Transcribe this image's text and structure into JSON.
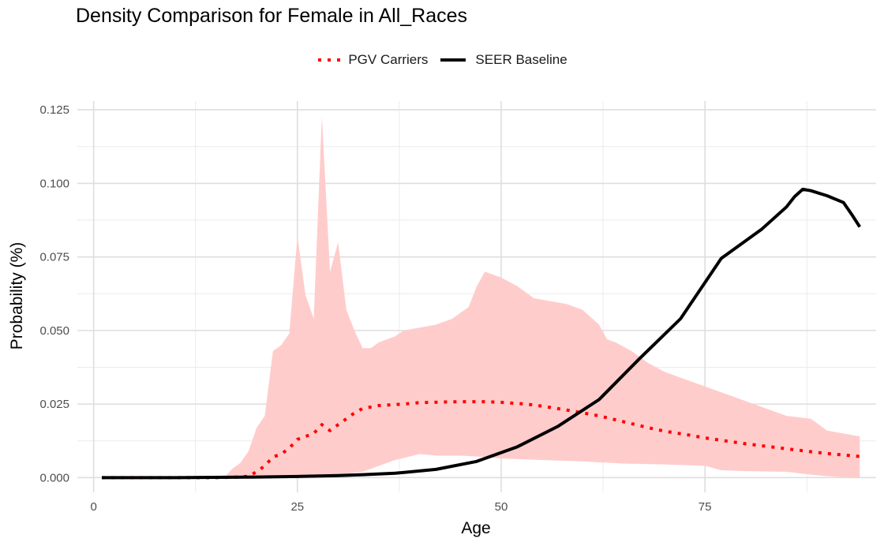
{
  "chart_data": {
    "type": "line",
    "title": "Density Comparison for Female in All_Races",
    "xlabel": "Age",
    "ylabel": "Probability (%)",
    "xlim": [
      -2,
      96
    ],
    "ylim": [
      -0.005,
      0.128
    ],
    "x_ticks": [
      0,
      25,
      50,
      75
    ],
    "x_tick_labels": [
      "0",
      "25",
      "50",
      "75"
    ],
    "y_ticks": [
      0.0,
      0.025,
      0.05,
      0.075,
      0.1,
      0.125
    ],
    "y_tick_labels": [
      "0.000",
      "0.025",
      "0.050",
      "0.075",
      "0.100",
      "0.125"
    ],
    "grid": true,
    "legend_position": "top",
    "series": [
      {
        "name": "PGV Carriers",
        "style": "dotted",
        "color": "#ff0000",
        "x": [
          1,
          5,
          10,
          15,
          18,
          19,
          20,
          21,
          22,
          23,
          24,
          25,
          26,
          27,
          28,
          29,
          30,
          31,
          32,
          33,
          35,
          38,
          40,
          43,
          45,
          48,
          50,
          53,
          55,
          58,
          60,
          62,
          65,
          68,
          70,
          73,
          75,
          78,
          80,
          83,
          85,
          88,
          90,
          94
        ],
        "y": [
          0.0,
          0.0,
          0.0,
          0.0,
          0.0002,
          0.0005,
          0.002,
          0.004,
          0.007,
          0.008,
          0.01,
          0.013,
          0.014,
          0.015,
          0.018,
          0.016,
          0.018,
          0.02,
          0.022,
          0.0235,
          0.0245,
          0.025,
          0.0255,
          0.0257,
          0.0258,
          0.0258,
          0.0256,
          0.025,
          0.0243,
          0.023,
          0.022,
          0.021,
          0.019,
          0.017,
          0.0158,
          0.0145,
          0.0135,
          0.0123,
          0.0115,
          0.0105,
          0.0098,
          0.0088,
          0.0082,
          0.0072
        ]
      },
      {
        "name": "SEER Baseline",
        "style": "solid",
        "color": "#000000",
        "x": [
          1,
          10,
          20,
          25,
          30,
          33,
          37,
          42,
          47,
          52,
          57,
          62,
          67,
          72,
          77,
          82,
          85,
          86,
          87,
          88,
          90,
          92,
          93,
          94
        ],
        "y": [
          0.0,
          0.0,
          0.0002,
          0.0004,
          0.0007,
          0.001,
          0.0015,
          0.0028,
          0.0055,
          0.0105,
          0.0175,
          0.0265,
          0.0405,
          0.054,
          0.0745,
          0.0845,
          0.092,
          0.0955,
          0.098,
          0.0975,
          0.0958,
          0.0935,
          0.0895,
          0.0852
        ]
      }
    ],
    "ribbon": {
      "series": "PGV Carriers",
      "color": "#ffcccc",
      "upper": {
        "x": [
          16,
          17,
          18,
          19,
          20,
          21,
          22,
          23,
          24,
          25,
          26,
          27,
          28,
          29,
          30,
          31,
          32,
          33,
          34,
          35,
          37,
          38,
          40,
          42,
          44,
          45,
          46,
          47,
          48,
          50,
          52,
          54,
          56,
          58,
          60,
          62,
          63,
          64,
          66,
          68,
          70,
          72,
          75,
          78,
          80,
          83,
          85,
          88,
          90,
          92,
          94
        ],
        "y": [
          0.0,
          0.003,
          0.005,
          0.009,
          0.017,
          0.021,
          0.043,
          0.045,
          0.049,
          0.082,
          0.062,
          0.054,
          0.123,
          0.07,
          0.08,
          0.057,
          0.05,
          0.044,
          0.044,
          0.046,
          0.048,
          0.05,
          0.051,
          0.052,
          0.054,
          0.056,
          0.058,
          0.065,
          0.07,
          0.068,
          0.065,
          0.061,
          0.06,
          0.059,
          0.057,
          0.052,
          0.047,
          0.046,
          0.043,
          0.039,
          0.036,
          0.034,
          0.031,
          0.028,
          0.026,
          0.023,
          0.021,
          0.02,
          0.016,
          0.015,
          0.014
        ]
      },
      "lower": {
        "x": [
          16,
          20,
          25,
          30,
          33,
          35,
          37,
          40,
          42,
          45,
          48,
          50,
          55,
          60,
          65,
          70,
          75,
          77,
          80,
          85,
          88,
          90,
          92,
          94
        ],
        "y": [
          0.0,
          0.0,
          0.0005,
          0.001,
          0.002,
          0.004,
          0.006,
          0.008,
          0.0075,
          0.0075,
          0.007,
          0.0065,
          0.006,
          0.0055,
          0.0048,
          0.0045,
          0.004,
          0.0025,
          0.0022,
          0.002,
          0.001,
          0.0005,
          0.0002,
          0.0
        ]
      }
    }
  }
}
